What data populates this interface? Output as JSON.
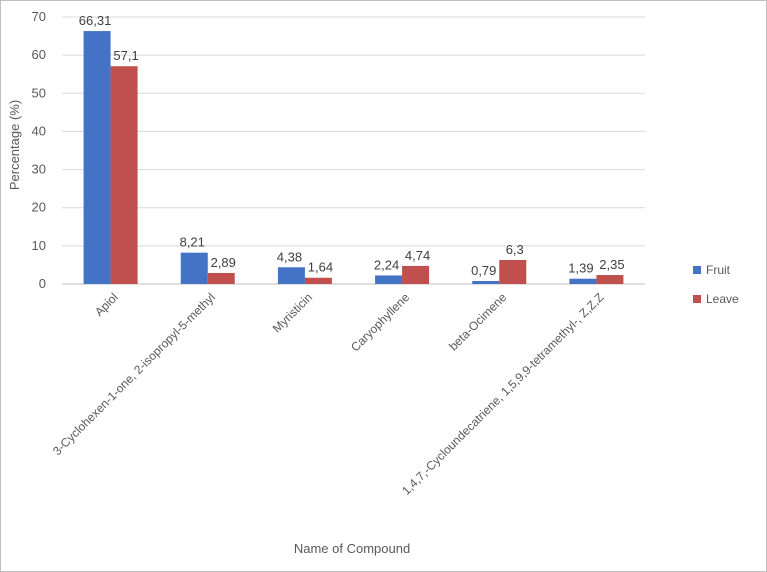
{
  "chart_data": {
    "type": "bar",
    "title": "",
    "xlabel": "Name of Compound",
    "ylabel": "Percentage (%)",
    "ylim": [
      0,
      70
    ],
    "yticks": [
      0,
      10,
      20,
      30,
      40,
      50,
      60,
      70
    ],
    "grid": true,
    "legend_position": "right",
    "categories": [
      "Apiol",
      "3-Cyclohexen-1-one, 2-isopropyl-5-methyl",
      "Myristicin",
      "Caryophyllene",
      "beta-Ocimene",
      "1,4,7,-Cycloundecatriene, 1,5,9,9-tetramethyl-, Z,Z,Z"
    ],
    "series": [
      {
        "name": "Fruit",
        "color": "#4472c4",
        "values": [
          66.31,
          8.21,
          4.38,
          2.24,
          0.79,
          1.39
        ],
        "labels": [
          "66,31",
          "8,21",
          "4,38",
          "2,24",
          "0,79",
          "1,39"
        ]
      },
      {
        "name": "Leave",
        "color": "#c0504d",
        "values": [
          57.1,
          2.89,
          1.64,
          4.74,
          6.3,
          2.35
        ],
        "labels": [
          "57,1",
          "2,89",
          "1,64",
          "4,74",
          "6,3",
          "2,35"
        ]
      }
    ]
  }
}
